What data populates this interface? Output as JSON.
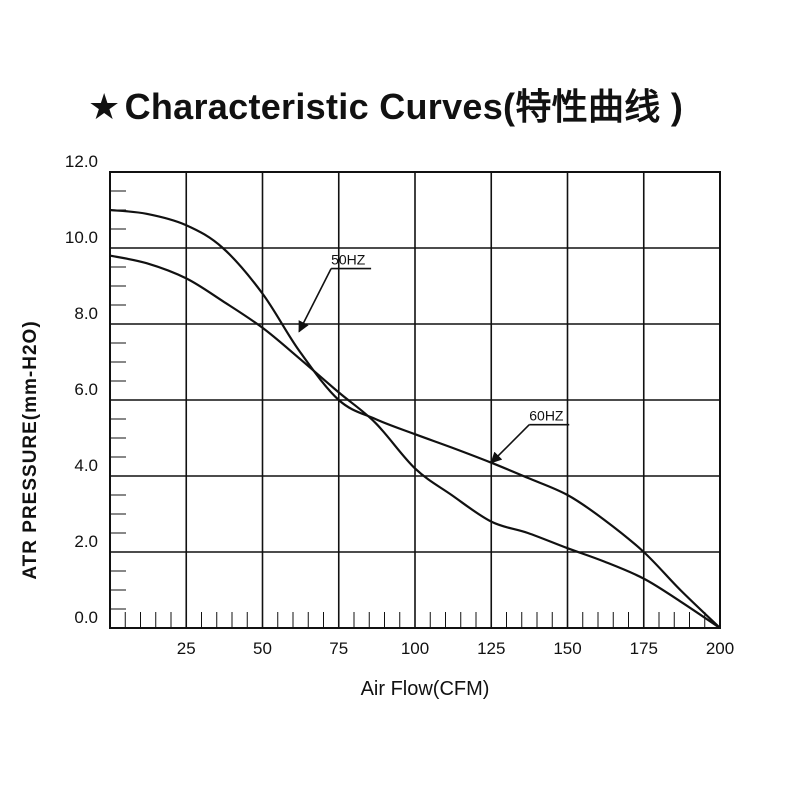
{
  "header": {
    "star": "★",
    "title": "Characteristic Curves(特性曲线 )"
  },
  "chart_data": {
    "type": "line",
    "title": "★Characteristic Curves(特性曲线 )",
    "xlabel": "Air Flow(CFM)",
    "ylabel": "ATR PRESSURE(mm-H2O)",
    "xlim": [
      0,
      200
    ],
    "ylim": [
      0,
      12
    ],
    "x_ticks": [
      "25",
      "50",
      "75",
      "100",
      "125",
      "150",
      "175",
      "200"
    ],
    "y_ticks": [
      "0.0",
      "2.0",
      "4.0",
      "6.0",
      "8.0",
      "10.0",
      "12.0"
    ],
    "grid": true,
    "series": [
      {
        "name": "50HZ",
        "x": [
          0,
          12,
          25,
          37,
          50,
          62,
          75,
          87,
          100,
          112,
          125,
          137,
          150,
          162,
          175,
          187,
          200
        ],
        "y": [
          9.8,
          9.6,
          9.2,
          8.6,
          7.9,
          7.1,
          6.2,
          5.4,
          4.2,
          3.5,
          2.8,
          2.5,
          2.1,
          1.75,
          1.3,
          0.7,
          0.0
        ]
      },
      {
        "name": "60HZ",
        "x": [
          0,
          12,
          25,
          37,
          50,
          62,
          75,
          87,
          100,
          112,
          125,
          137,
          150,
          162,
          175,
          187,
          200
        ],
        "y": [
          11.0,
          10.9,
          10.6,
          10.0,
          8.8,
          7.3,
          6.0,
          5.5,
          5.1,
          4.75,
          4.35,
          3.95,
          3.5,
          2.85,
          2.0,
          1.0,
          0.0
        ]
      }
    ],
    "annotations": [
      {
        "series": "50HZ",
        "text": "50HZ",
        "at_x": 62,
        "at_y": 7.8
      },
      {
        "series": "60HZ",
        "text": "60HZ",
        "at_x": 125,
        "at_y": 4.35
      }
    ]
  }
}
